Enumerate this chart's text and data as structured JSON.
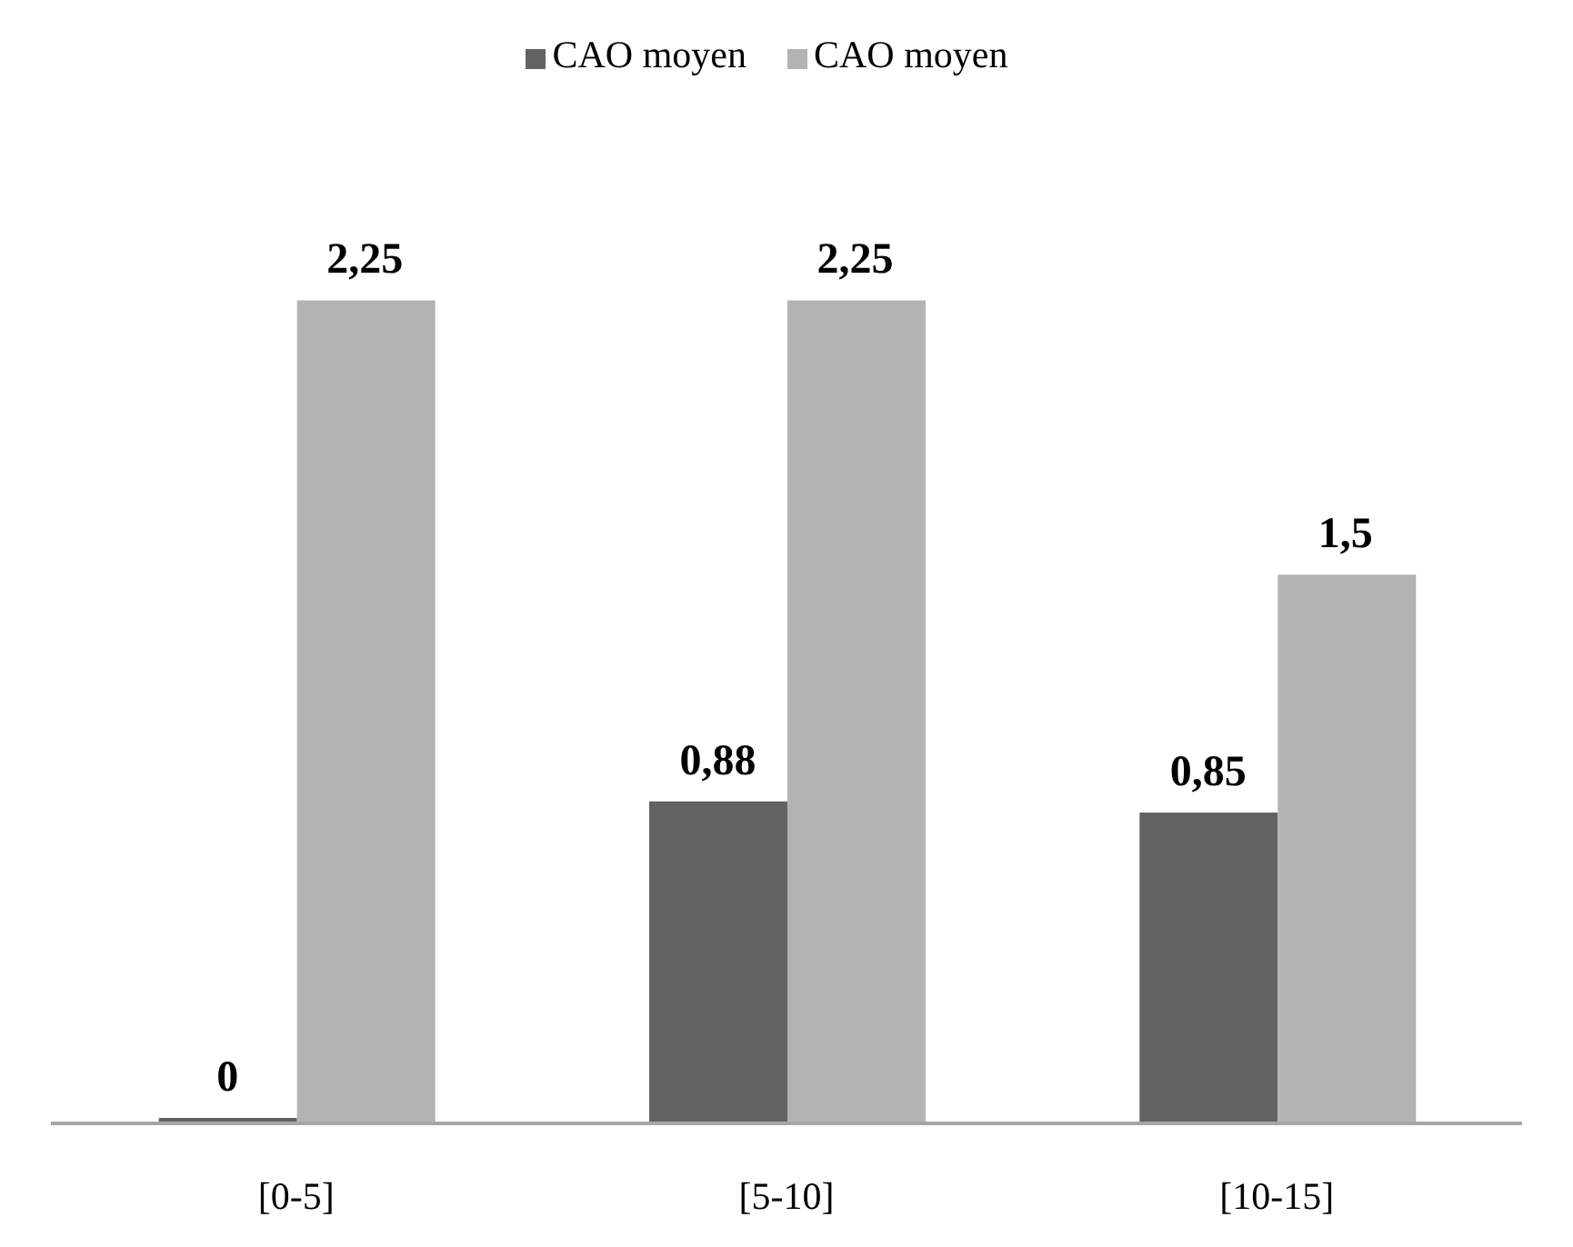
{
  "chart_data": {
    "type": "bar",
    "categories": [
      "[0-5]",
      "[5-10]",
      "[10-15]"
    ],
    "series": [
      {
        "name": "CAO moyen",
        "color": "#626262",
        "values": [
          0,
          0.88,
          0.85
        ],
        "value_labels": [
          "0",
          "0,88",
          "0,85"
        ]
      },
      {
        "name": "CAO moyen",
        "color": "#b3b3b3",
        "values": [
          2.25,
          2.25,
          1.5
        ],
        "value_labels": [
          "2,25",
          "2,25",
          "1,5"
        ]
      }
    ],
    "legend": "top"
  }
}
